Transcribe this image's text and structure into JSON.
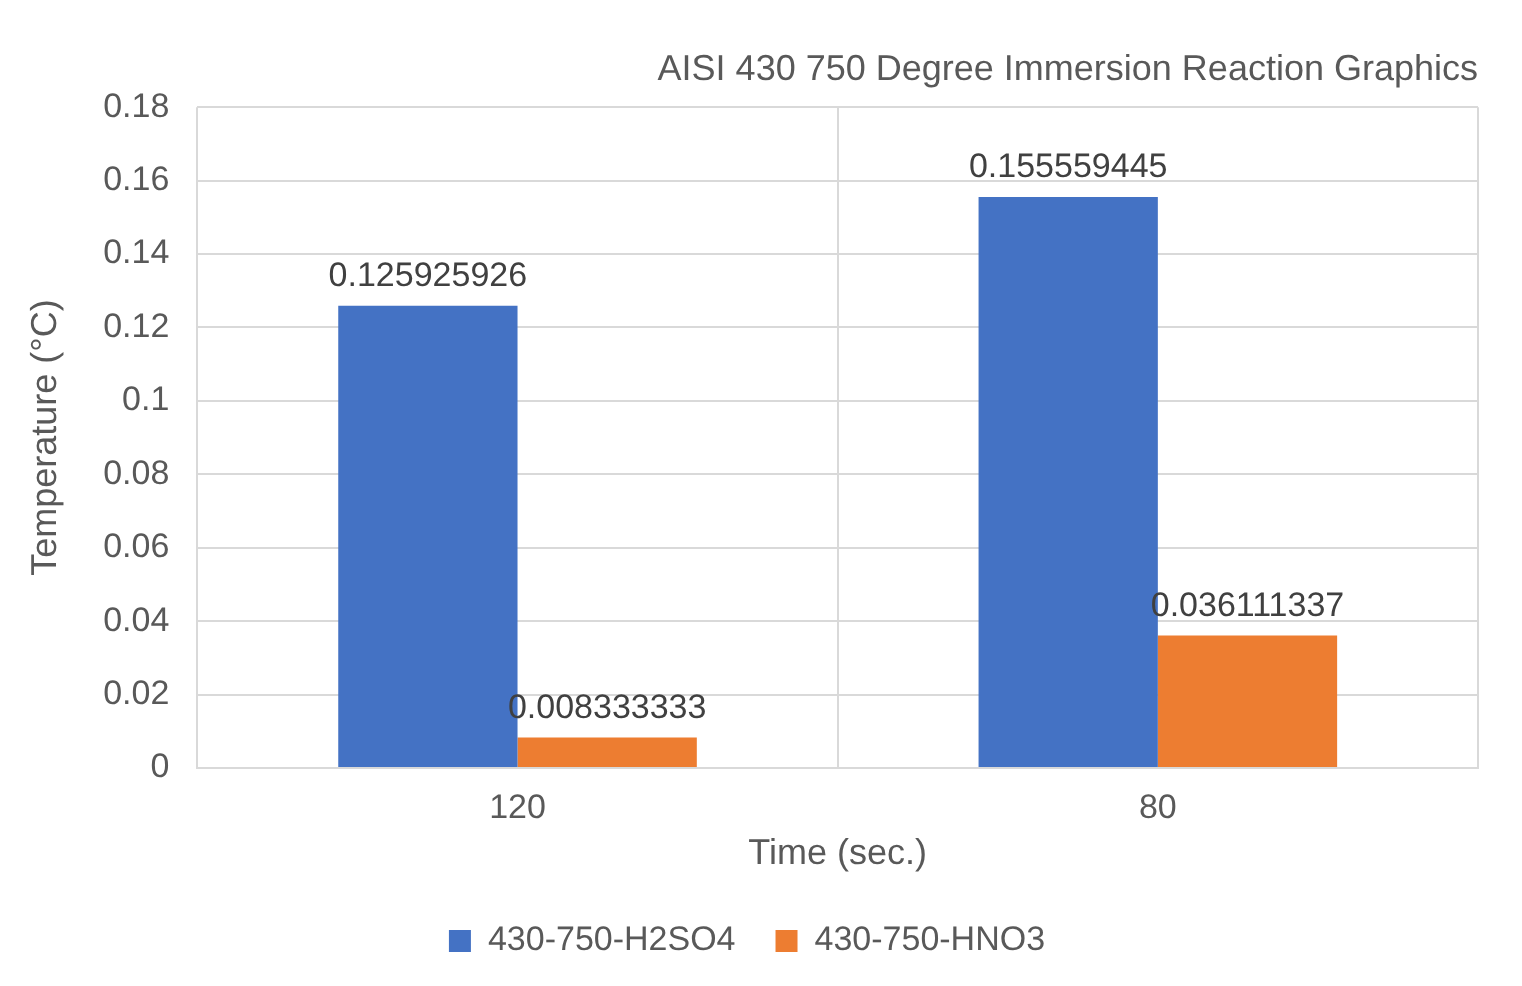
{
  "chart_data": {
    "type": "bar",
    "title": "AISI 430 750 Degree Immersion Reaction Graphics",
    "xlabel": "Time (sec.)",
    "ylabel": "Temperature (°C)",
    "categories": [
      "120",
      "80"
    ],
    "series": [
      {
        "name": "430-750-H2SO4",
        "color": "#4472c4",
        "values": [
          0.125925926,
          0.155559445
        ]
      },
      {
        "name": "430-750-HNO3",
        "color": "#ed7d31",
        "values": [
          0.008333333,
          0.036111337
        ]
      }
    ],
    "ylim": [
      0,
      0.18
    ],
    "yticks": [
      0,
      0.02,
      0.04,
      0.06,
      0.08,
      0.1,
      0.12,
      0.14,
      0.16,
      0.18
    ],
    "grid": true,
    "legend": "bottom",
    "data_labels": true
  }
}
